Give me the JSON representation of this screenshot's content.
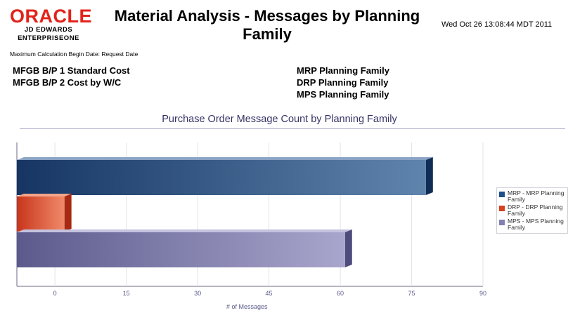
{
  "header": {
    "logo_main": "ORACLE",
    "logo_line1": "JD EDWARDS",
    "logo_line2": "ENTERPRISEONE",
    "title": "Material Analysis - Messages by Planning Family",
    "timestamp": "Wed Oct 26 13:08:44 MDT 2011",
    "max_calc": "Maximum Calculation Begin Date: Request Date"
  },
  "params": {
    "left": [
      "MFGB B/P 1 Standard Cost",
      "MFGB B/P 2 Cost by W/C"
    ],
    "right": [
      "MRP Planning Family",
      "DRP Planning Family",
      "MPS Planning Family"
    ]
  },
  "colors": {
    "brand_red": "#e2231a",
    "mrp": "#1f4e8c",
    "drp": "#d9401e",
    "mps": "#8280b0"
  },
  "chart_data": {
    "type": "bar",
    "orientation": "horizontal",
    "title": "Purchase Order Message Count by Planning Family",
    "xlabel": "# of Messages",
    "ylabel": "",
    "xlim": [
      -8,
      90
    ],
    "xticks": [
      0,
      15,
      30,
      45,
      60,
      75,
      90
    ],
    "grid": true,
    "legend_position": "right",
    "series": [
      {
        "name": "MRP - MRP Planning Family",
        "value": 78,
        "color": "#1f4e8c"
      },
      {
        "name": "DRP - DRP Planning Family",
        "value": 2,
        "color": "#d9401e"
      },
      {
        "name": "MPS - MPS Planning Family",
        "value": 61,
        "color": "#8280b0"
      }
    ]
  }
}
